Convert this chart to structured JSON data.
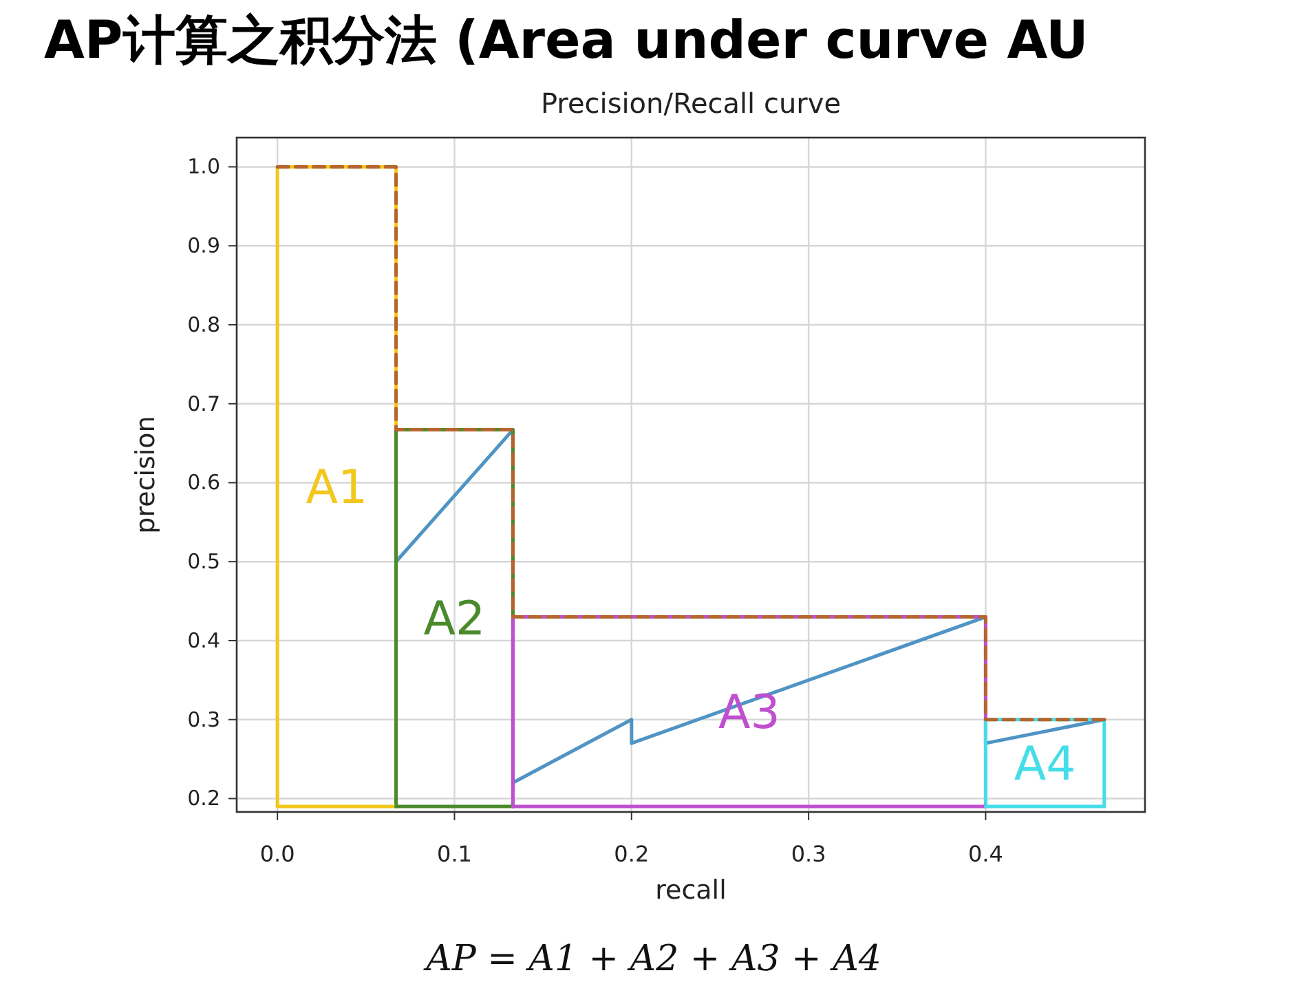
{
  "chart_data": {
    "type": "line",
    "title": "AP计算之积分法 (Area under curve AU",
    "subtitle": "Precision/Recall curve",
    "xlabel": "recall",
    "ylabel": "precision",
    "xlim": [
      -0.023,
      0.49
    ],
    "ylim": [
      0.183,
      1.037
    ],
    "xticks": [
      {
        "value": 0,
        "label": "0.0"
      },
      0.1,
      0.2,
      0.3,
      0.4
    ],
    "yticks": [
      0.2,
      0.3,
      0.4,
      0.5,
      0.6,
      0.7,
      0.8,
      0.9,
      {
        "value": 1,
        "label": "1.0"
      }
    ],
    "grid": true,
    "series": [
      {
        "color": "#4f94c4",
        "x": [
          0.067,
          0.133,
          0.133,
          0.2,
          0.2,
          0.4,
          0.4,
          0.467
        ],
        "values": [
          0.5,
          0.667,
          0.22,
          0.3,
          0.27,
          0.43,
          0.27,
          0.3
        ]
      },
      {
        "name": "A1",
        "type": "line",
        "color": "#f2c81e",
        "x": [
          0,
          0,
          0.067,
          0.067
        ],
        "values": [
          0.19,
          1.0,
          1.0,
          0.19
        ]
      },
      {
        "name": "A2",
        "type": "line",
        "color": "#4a8a2c",
        "x": [
          0.067,
          0.067,
          0.133,
          0.133
        ],
        "values": [
          0.19,
          0.667,
          0.667,
          0.19
        ]
      },
      {
        "name": "A3",
        "type": "line",
        "color": "#c04fd0",
        "x": [
          0.133,
          0.133,
          0.4,
          0.4
        ],
        "values": [
          0.19,
          0.43,
          0.43,
          0.19
        ]
      },
      {
        "name": "A4",
        "type": "line",
        "color": "#45dde8",
        "x": [
          0.4,
          0.4,
          0.467,
          0.467
        ],
        "values": [
          0.19,
          0.3,
          0.3,
          0.19
        ]
      },
      {
        "type": "line",
        "color": "#f2c81e",
        "x": [
          0,
          0.067
        ],
        "values": [
          0.19,
          0.19
        ]
      },
      {
        "type": "line",
        "color": "#4a8a2c",
        "x": [
          0.067,
          0.133
        ],
        "values": [
          0.19,
          0.19
        ]
      },
      {
        "type": "line",
        "color": "#c04fd0",
        "x": [
          0.133,
          0.4
        ],
        "values": [
          0.19,
          0.19
        ]
      },
      {
        "type": "line",
        "color": "#45dde8",
        "x": [
          0.4,
          0.467
        ],
        "values": [
          0.19,
          0.19
        ]
      },
      {
        "color": "#b5652d",
        "line_style": "dashed",
        "x": [
          0,
          0.067,
          0.067,
          0.133,
          0.133,
          0.4,
          0.4,
          0.467
        ],
        "values": [
          1.0,
          1.0,
          0.667,
          0.667,
          0.43,
          0.43,
          0.3,
          0.3
        ]
      }
    ],
    "annotations": [
      "AP = A1 + A2 + A3 + A4"
    ]
  }
}
